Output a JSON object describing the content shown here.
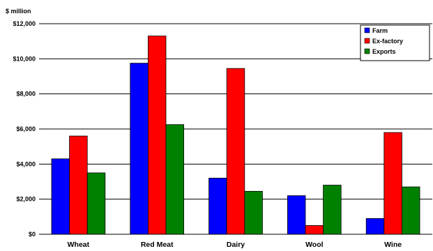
{
  "chart_data": {
    "type": "bar",
    "title": "",
    "ylabel": "$ million",
    "xlabel": "",
    "categories": [
      "Wheat",
      "Red Meat",
      "Dairy",
      "Wool",
      "Wine"
    ],
    "series": [
      {
        "name": "Farm",
        "color": "#0000ff",
        "values": [
          4300,
          9750,
          3200,
          2200,
          900
        ]
      },
      {
        "name": "Ex-factory",
        "color": "#ff0000",
        "values": [
          5600,
          11300,
          9450,
          500,
          5800
        ]
      },
      {
        "name": "Exports",
        "color": "#008000",
        "values": [
          3500,
          6250,
          2450,
          2800,
          2700
        ]
      }
    ],
    "ylim": [
      0,
      12000
    ],
    "yticks": [
      "$0",
      "$2,000",
      "$4,000",
      "$6,000",
      "$8,000",
      "$10,000",
      "$12,000"
    ],
    "ytick_values": [
      0,
      2000,
      4000,
      6000,
      8000,
      10000,
      12000
    ],
    "grid": true,
    "legend_position": "top-right"
  }
}
